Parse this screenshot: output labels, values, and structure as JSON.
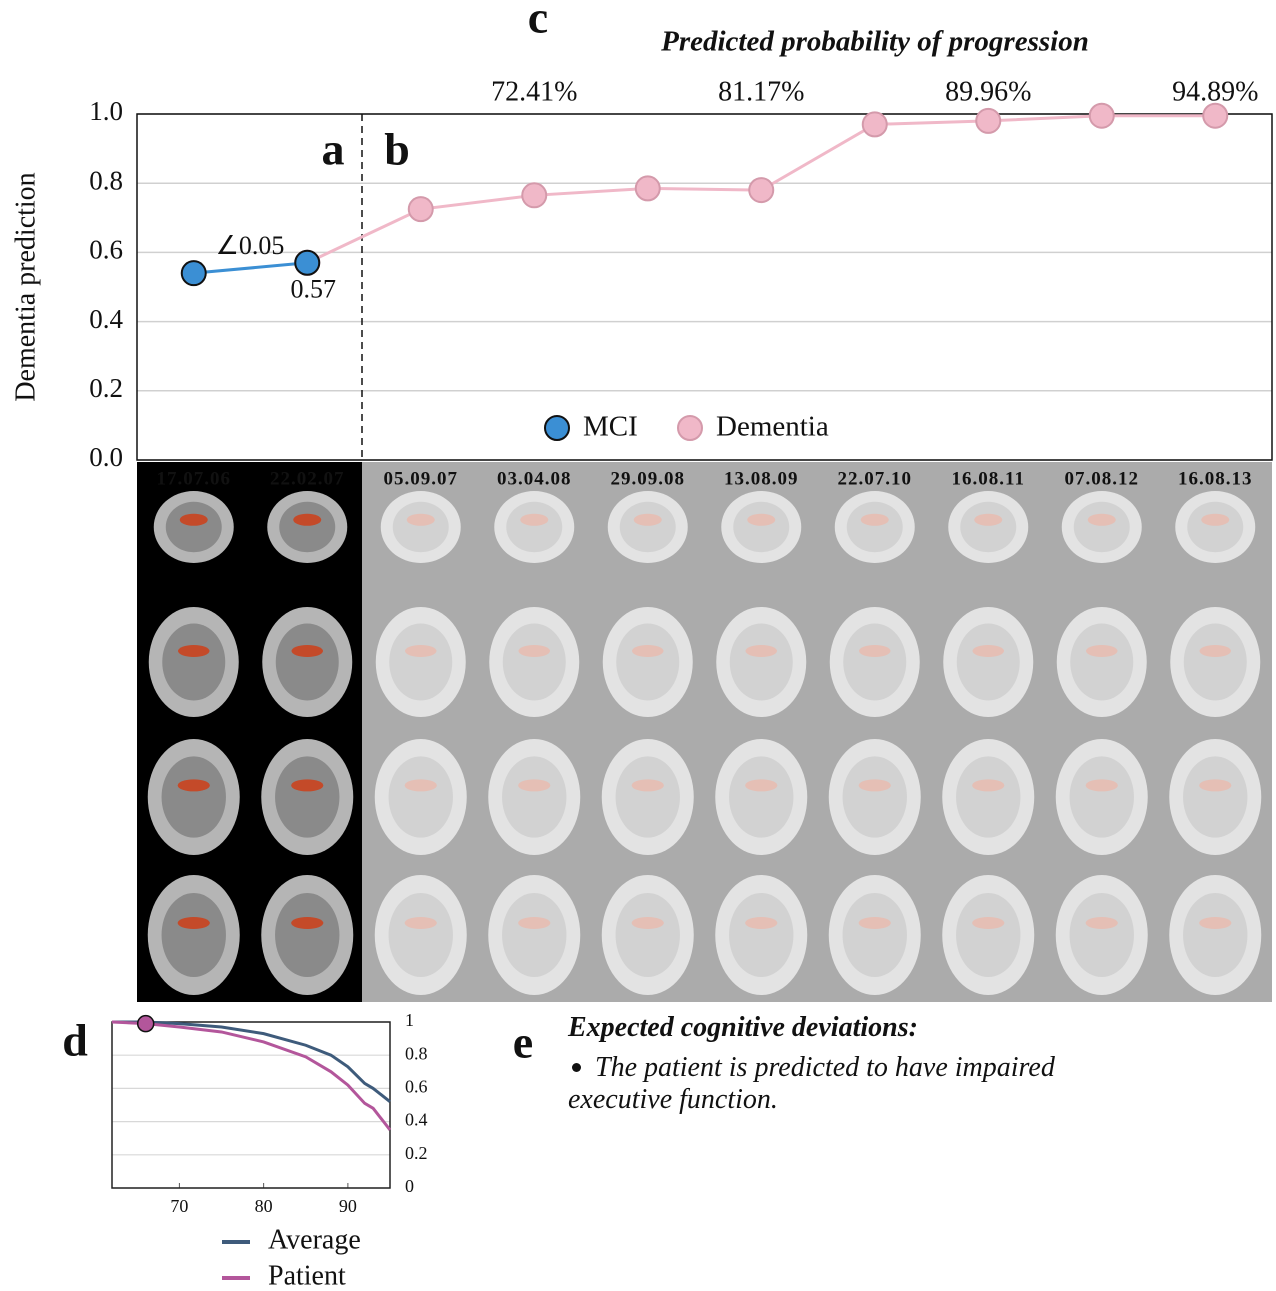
{
  "chart_data": [
    {
      "type": "line",
      "title": "Predicted probability of progression",
      "panel_labels": [
        "a",
        "b",
        "c"
      ],
      "ylabel": "Dementia prediction",
      "categories": [
        "17.07.06",
        "22.02.07",
        "05.09.07",
        "03.04.08",
        "29.09.08",
        "13.08.09",
        "22.07.10",
        "16.08.11",
        "07.08.12",
        "16.08.13"
      ],
      "series": [
        {
          "name": "MCI",
          "color": "#3b8fd4",
          "values": [
            0.54,
            0.57,
            null,
            null,
            null,
            null,
            null,
            null,
            null,
            null
          ],
          "value_labels": [
            null,
            "0.57",
            null,
            null,
            null,
            null,
            null,
            null,
            null,
            null
          ]
        },
        {
          "name": "Dementia",
          "color": "#f0b8c8",
          "values": [
            null,
            0.57,
            0.725,
            0.765,
            0.785,
            0.78,
            0.97,
            0.98,
            0.995,
            0.995
          ]
        }
      ],
      "progression": {
        "values": [
          null,
          null,
          null,
          72.41,
          null,
          81.17,
          null,
          89.96,
          null,
          94.89
        ],
        "value_labels": [
          null,
          null,
          null,
          "72.41%",
          null,
          "81.17%",
          null,
          "89.96%",
          null,
          "94.89%"
        ]
      },
      "annotations": [
        "∠0.05"
      ],
      "ylim": [
        0,
        1
      ],
      "yticks": [
        {
          "value": 0,
          "label": "0.0"
        },
        0.2,
        0.4,
        0.6,
        0.8,
        {
          "value": 1,
          "label": "1.0"
        }
      ],
      "grid": true,
      "legend": "bottom"
    },
    {
      "type": "line",
      "panel_label": "d",
      "x": [
        62,
        66,
        70,
        75,
        80,
        85,
        88,
        90,
        92,
        93,
        95
      ],
      "series": [
        {
          "name": "Average",
          "color": "#3e5b7b",
          "values": [
            1,
            1,
            0.99,
            0.97,
            0.93,
            0.86,
            0.8,
            0.73,
            0.63,
            0.6,
            0.52
          ]
        },
        {
          "name": "Patient",
          "color": "#b3569b",
          "values": [
            1,
            0.99,
            0.97,
            0.94,
            0.88,
            0.79,
            0.7,
            0.62,
            0.51,
            0.48,
            0.35
          ]
        }
      ],
      "highlight": {
        "x": 66,
        "y": 0.99
      },
      "xlim": [
        62,
        95
      ],
      "ylim": [
        0,
        1
      ],
      "xticks": [
        70,
        80,
        90
      ],
      "yticks": [
        0,
        0.2,
        0.4,
        0.6,
        0.8,
        1
      ],
      "grid": true,
      "legend": "bottom"
    }
  ],
  "text_panel": {
    "label": "e",
    "title": "Expected cognitive deviations:",
    "items": [
      "The patient is predicted to have impaired executive function."
    ]
  }
}
